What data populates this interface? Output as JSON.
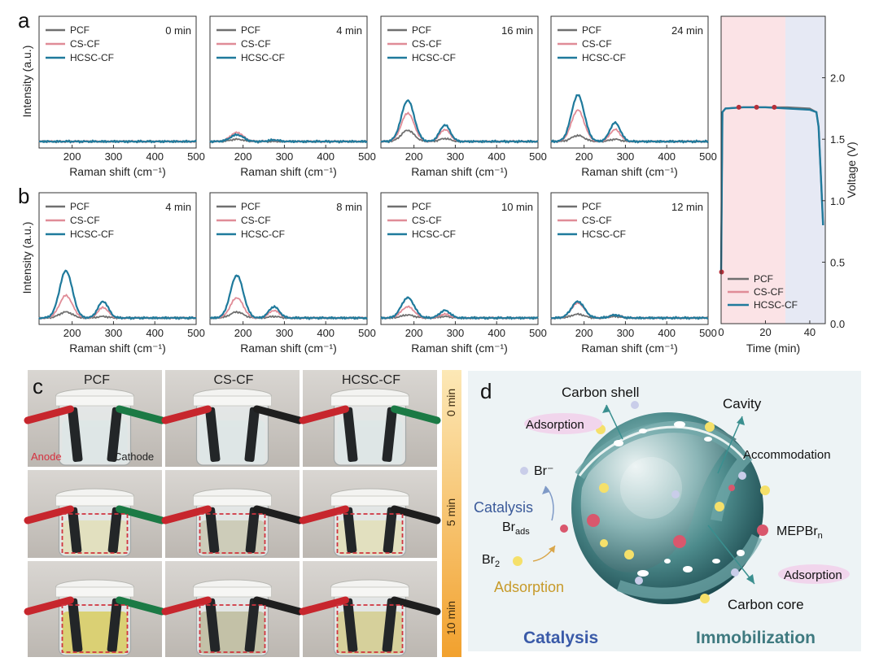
{
  "panel_labels": {
    "a": "a",
    "b": "b",
    "c": "c",
    "d": "d"
  },
  "raman_common": {
    "ylabel": "Intensity (a.u.)",
    "xlabel": "Raman shift (cm⁻¹)",
    "xticks": [
      "200",
      "300",
      "400",
      "500"
    ],
    "legend": [
      "PCF",
      "CS-CF",
      "HCSC-CF"
    ]
  },
  "colors": {
    "PCF": "#6f6f6f",
    "CS-CF": "#e08c97",
    "HCSC-CF": "#1f7a9c",
    "pink_region": "#fbe3e6",
    "blue_region": "#e6e9f4",
    "marker": "#b5303a"
  },
  "chart_data": [
    {
      "type": "line",
      "panel": "a",
      "time_label": "0 min",
      "xlabel": "Raman shift (cm⁻¹)",
      "ylabel": "Intensity (a.u.)",
      "xlim": [
        120,
        500
      ],
      "series": [
        {
          "name": "PCF",
          "peak1": 0.0,
          "peak2": 0.0
        },
        {
          "name": "CS-CF",
          "peak1": 0.0,
          "peak2": 0.0
        },
        {
          "name": "HCSC-CF",
          "peak1": 0.0,
          "peak2": 0.0
        }
      ]
    },
    {
      "type": "line",
      "panel": "a",
      "time_label": "4 min",
      "xlabel": "Raman shift (cm⁻¹)",
      "ylabel": "Intensity (a.u.)",
      "xlim": [
        120,
        500
      ],
      "series": [
        {
          "name": "PCF",
          "peak1": 0.03,
          "peak2": 0.0
        },
        {
          "name": "CS-CF",
          "peak1": 0.12,
          "peak2": 0.02
        },
        {
          "name": "HCSC-CF",
          "peak1": 0.09,
          "peak2": 0.02
        }
      ]
    },
    {
      "type": "line",
      "panel": "a",
      "time_label": "16 min",
      "xlabel": "Raman shift (cm⁻¹)",
      "ylabel": "Intensity (a.u.)",
      "xlim": [
        120,
        500
      ],
      "series": [
        {
          "name": "PCF",
          "peak1": 0.15,
          "peak2": 0.04
        },
        {
          "name": "CS-CF",
          "peak1": 0.38,
          "peak2": 0.16
        },
        {
          "name": "HCSC-CF",
          "peak1": 0.55,
          "peak2": 0.22
        }
      ]
    },
    {
      "type": "line",
      "panel": "a",
      "time_label": "24 min",
      "xlabel": "Raman shift (cm⁻¹)",
      "ylabel": "Intensity (a.u.)",
      "xlim": [
        120,
        500
      ],
      "series": [
        {
          "name": "PCF",
          "peak1": 0.08,
          "peak2": 0.03
        },
        {
          "name": "CS-CF",
          "peak1": 0.42,
          "peak2": 0.16
        },
        {
          "name": "HCSC-CF",
          "peak1": 0.62,
          "peak2": 0.25
        }
      ]
    },
    {
      "type": "line",
      "panel": "b",
      "time_label": "4 min",
      "xlabel": "Raman shift (cm⁻¹)",
      "ylabel": "Intensity (a.u.)",
      "xlim": [
        120,
        500
      ],
      "series": [
        {
          "name": "PCF",
          "peak1": 0.08,
          "peak2": 0.02
        },
        {
          "name": "CS-CF",
          "peak1": 0.3,
          "peak2": 0.14
        },
        {
          "name": "HCSC-CF",
          "peak1": 0.63,
          "peak2": 0.22
        }
      ]
    },
    {
      "type": "line",
      "panel": "b",
      "time_label": "8 min",
      "xlabel": "Raman shift (cm⁻¹)",
      "ylabel": "Intensity (a.u.)",
      "xlim": [
        120,
        500
      ],
      "series": [
        {
          "name": "PCF",
          "peak1": 0.08,
          "peak2": 0.02
        },
        {
          "name": "CS-CF",
          "peak1": 0.27,
          "peak2": 0.1
        },
        {
          "name": "HCSC-CF",
          "peak1": 0.57,
          "peak2": 0.15
        }
      ]
    },
    {
      "type": "line",
      "panel": "b",
      "time_label": "10 min",
      "xlabel": "Raman shift (cm⁻¹)",
      "ylabel": "Intensity (a.u.)",
      "xlim": [
        120,
        500
      ],
      "series": [
        {
          "name": "PCF",
          "peak1": 0.04,
          "peak2": 0.02
        },
        {
          "name": "CS-CF",
          "peak1": 0.15,
          "peak2": 0.05
        },
        {
          "name": "HCSC-CF",
          "peak1": 0.27,
          "peak2": 0.1
        }
      ]
    },
    {
      "type": "line",
      "panel": "b",
      "time_label": "12 min",
      "xlabel": "Raman shift (cm⁻¹)",
      "ylabel": "Intensity (a.u.)",
      "xlim": [
        120,
        500
      ],
      "series": [
        {
          "name": "PCF",
          "peak1": 0.05,
          "peak2": 0.02
        },
        {
          "name": "CS-CF",
          "peak1": 0.2,
          "peak2": 0.04
        },
        {
          "name": "HCSC-CF",
          "peak1": 0.22,
          "peak2": 0.04
        }
      ]
    },
    {
      "type": "line",
      "panel": "voltage",
      "xlabel": "Time (min)",
      "ylabel": "Voltage (V)",
      "xlim": [
        0,
        47
      ],
      "ylim": [
        0.0,
        2.5
      ],
      "xticks": [
        "0",
        "20",
        "40"
      ],
      "yticks": [
        "0.0",
        "0.5",
        "1.0",
        "1.5",
        "2.0"
      ],
      "regions": [
        {
          "from": 0,
          "to": 29,
          "color": "pink"
        },
        {
          "from": 29,
          "to": 47,
          "color": "blue"
        }
      ],
      "markers": [
        {
          "x": 0.2,
          "y": 0.42
        },
        {
          "x": 8,
          "y": 1.76
        },
        {
          "x": 16,
          "y": 1.76
        },
        {
          "x": 24,
          "y": 1.76
        }
      ],
      "series": [
        {
          "name": "PCF",
          "x": [
            0,
            0.6,
            2,
            10,
            20,
            30,
            40,
            43,
            44,
            45,
            46
          ],
          "y": [
            0.42,
            1.72,
            1.75,
            1.76,
            1.76,
            1.76,
            1.75,
            1.72,
            1.6,
            1.2,
            0.8
          ]
        },
        {
          "name": "CS-CF",
          "x": [
            0,
            0.6,
            2,
            10,
            20,
            30,
            40,
            43,
            44,
            45,
            46
          ],
          "y": [
            0.42,
            1.72,
            1.75,
            1.76,
            1.76,
            1.75,
            1.74,
            1.72,
            1.6,
            1.2,
            0.8
          ]
        },
        {
          "name": "HCSC-CF",
          "x": [
            0,
            0.6,
            2,
            10,
            20,
            30,
            40,
            43,
            44,
            45,
            46
          ],
          "y": [
            0.42,
            1.72,
            1.75,
            1.76,
            1.76,
            1.75,
            1.74,
            1.72,
            1.6,
            1.2,
            0.8
          ]
        }
      ]
    }
  ],
  "panel_c": {
    "columns": [
      "PCF",
      "CS-CF",
      "HCSC-CF"
    ],
    "time_labels": [
      "0 min",
      "5 min",
      "10 min"
    ],
    "anode": "Anode",
    "cathode": "Cathode"
  },
  "panel_d": {
    "carbon_shell": "Carbon shell",
    "cavity": "Cavity",
    "adsorption_1": "Adsorption",
    "accommodation": "Accommodation",
    "br_minus": "Br⁻",
    "catalysis_label": "Catalysis",
    "br_ads_main": "Br",
    "br_ads_sub": "ads",
    "mepbr_main": "MEPBr",
    "mepbr_sub": "n",
    "br2_main": "Br",
    "br2_sub": "2",
    "adsorption_yellow": "Adsorption",
    "adsorption_2": "Adsorption",
    "carbon_core": "Carbon core",
    "bottom_catalysis": "Catalysis",
    "bottom_immobilization": "Immobilization"
  }
}
